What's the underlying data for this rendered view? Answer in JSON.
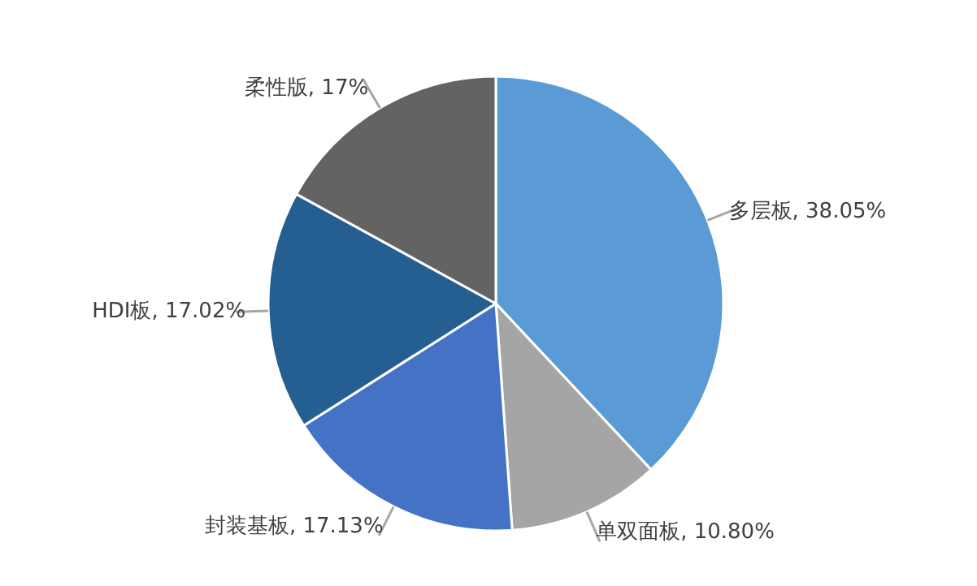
{
  "chart_data": {
    "type": "pie",
    "categories": [
      "多层板",
      "单双面板",
      "封装基板",
      "HDI板",
      "柔性版"
    ],
    "values": [
      38.05,
      10.8,
      17.13,
      17.02,
      17
    ],
    "value_labels": [
      "38.05%",
      "10.80%",
      "17.13%",
      "17.02%",
      "17%"
    ],
    "colors": [
      "#5b9bd5",
      "#a5a5a5",
      "#4472c4",
      "#255e91",
      "#636363"
    ],
    "legend": false
  }
}
